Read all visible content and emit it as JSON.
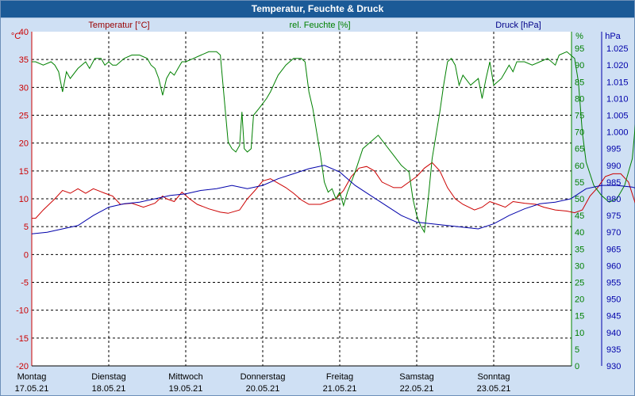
{
  "window": {
    "title": "Temperatur, Feuchte & Druck"
  },
  "chart_data": {
    "type": "line",
    "title": "Temperatur, Feuchte & Druck",
    "grid": true,
    "colors": {
      "temperature": "#cc0000",
      "humidity": "#008000",
      "pressure": "#0000aa",
      "grid": "#000000",
      "plot_bg": "#ffffff",
      "outer_bg": "#cfe0f4",
      "titlebar": "#1b5a97"
    },
    "axes": {
      "temperature": {
        "label": "Temperatur [°C]",
        "unit": "°C",
        "min": -20,
        "max": 40,
        "step": 5,
        "ticks": [
          "40",
          "35",
          "30",
          "25",
          "20",
          "15",
          "10",
          "5",
          "0",
          "-5",
          "-10",
          "-15",
          "-20"
        ]
      },
      "humidity": {
        "label": "rel. Feuchte [%]",
        "unit": "%",
        "min": 0,
        "max": 100,
        "step": 5,
        "ticks": [
          "95",
          "90",
          "85",
          "80",
          "75",
          "70",
          "65",
          "60",
          "55",
          "50",
          "45",
          "40",
          "35",
          "30",
          "25",
          "20",
          "15",
          "10",
          "5",
          "0"
        ]
      },
      "pressure": {
        "label": "Druck [hPa]",
        "unit": "hPa",
        "min": 930,
        "max": 1030,
        "step": 5,
        "ticks": [
          "1.025",
          "1.020",
          "1.015",
          "1.010",
          "1.005",
          "1.000",
          "995",
          "990",
          "985",
          "980",
          "975",
          "970",
          "965",
          "960",
          "955",
          "950",
          "945",
          "940",
          "935",
          "930"
        ]
      }
    },
    "x_axis": {
      "days": [
        {
          "day": "Montag",
          "date": "17.05.21"
        },
        {
          "day": "Dienstag",
          "date": "18.05.21"
        },
        {
          "day": "Mittwoch",
          "date": "19.05.21"
        },
        {
          "day": "Donnerstag",
          "date": "20.05.21"
        },
        {
          "day": "Freitag",
          "date": "21.05.21"
        },
        {
          "day": "Samstag",
          "date": "22.05.21"
        },
        {
          "day": "Sonntag",
          "date": "23.05.21"
        }
      ]
    },
    "series": [
      {
        "name": "Temperatur [°C]",
        "axis": "temperature",
        "key": "temperature",
        "points": [
          [
            0,
            6.5
          ],
          [
            0.05,
            6.5
          ],
          [
            0.15,
            8
          ],
          [
            0.3,
            10
          ],
          [
            0.4,
            11.5
          ],
          [
            0.5,
            11
          ],
          [
            0.6,
            11.8
          ],
          [
            0.7,
            11
          ],
          [
            0.8,
            11.8
          ],
          [
            0.95,
            11
          ],
          [
            1.05,
            10.5
          ],
          [
            1.15,
            9
          ],
          [
            1.3,
            9.2
          ],
          [
            1.45,
            8.5
          ],
          [
            1.6,
            9.2
          ],
          [
            1.7,
            10.5
          ],
          [
            1.75,
            10
          ],
          [
            1.85,
            9.5
          ],
          [
            1.95,
            11.2
          ],
          [
            2.05,
            10
          ],
          [
            2.15,
            9
          ],
          [
            2.3,
            8.2
          ],
          [
            2.45,
            7.6
          ],
          [
            2.55,
            7.4
          ],
          [
            2.7,
            8
          ],
          [
            2.8,
            10
          ],
          [
            2.9,
            11.5
          ],
          [
            3.0,
            13.2
          ],
          [
            3.1,
            13.6
          ],
          [
            3.2,
            12.8
          ],
          [
            3.3,
            12
          ],
          [
            3.4,
            11
          ],
          [
            3.5,
            9.8
          ],
          [
            3.6,
            9
          ],
          [
            3.75,
            9
          ],
          [
            3.85,
            9.5
          ],
          [
            3.95,
            10
          ],
          [
            4.05,
            11.5
          ],
          [
            4.15,
            14
          ],
          [
            4.25,
            15.5
          ],
          [
            4.35,
            15.8
          ],
          [
            4.45,
            15
          ],
          [
            4.55,
            13
          ],
          [
            4.7,
            12
          ],
          [
            4.8,
            12
          ],
          [
            4.9,
            13
          ],
          [
            5.0,
            14
          ],
          [
            5.1,
            15.5
          ],
          [
            5.2,
            16.5
          ],
          [
            5.3,
            15
          ],
          [
            5.4,
            12
          ],
          [
            5.5,
            10
          ],
          [
            5.6,
            9
          ],
          [
            5.75,
            8
          ],
          [
            5.85,
            8.5
          ],
          [
            5.95,
            9.5
          ],
          [
            6.05,
            9
          ],
          [
            6.15,
            8.5
          ],
          [
            6.25,
            9.5
          ],
          [
            6.4,
            9.2
          ],
          [
            6.55,
            9
          ],
          [
            6.65,
            8.5
          ],
          [
            6.8,
            8
          ],
          [
            6.95,
            7.8
          ],
          [
            7.05,
            7.5
          ],
          [
            7.15,
            8
          ],
          [
            7.25,
            10.5
          ],
          [
            7.35,
            12
          ],
          [
            7.45,
            14
          ],
          [
            7.55,
            14.5
          ],
          [
            7.65,
            14.5
          ],
          [
            7.75,
            13
          ],
          [
            7.82,
            10
          ],
          [
            7.87,
            8
          ]
        ]
      },
      {
        "name": "rel. Feuchte [%]",
        "axis": "humidity",
        "key": "humidity",
        "points": [
          [
            0,
            91
          ],
          [
            0.05,
            91
          ],
          [
            0.15,
            90
          ],
          [
            0.25,
            91
          ],
          [
            0.3,
            90
          ],
          [
            0.35,
            88
          ],
          [
            0.4,
            82
          ],
          [
            0.45,
            88
          ],
          [
            0.5,
            86
          ],
          [
            0.6,
            89
          ],
          [
            0.7,
            91
          ],
          [
            0.75,
            89
          ],
          [
            0.82,
            92
          ],
          [
            0.9,
            92
          ],
          [
            0.95,
            90
          ],
          [
            1.0,
            91
          ],
          [
            1.05,
            90
          ],
          [
            1.1,
            90
          ],
          [
            1.2,
            92
          ],
          [
            1.3,
            93
          ],
          [
            1.4,
            93
          ],
          [
            1.5,
            92
          ],
          [
            1.55,
            90
          ],
          [
            1.6,
            89
          ],
          [
            1.65,
            86
          ],
          [
            1.7,
            81
          ],
          [
            1.75,
            86
          ],
          [
            1.8,
            88
          ],
          [
            1.85,
            87
          ],
          [
            1.9,
            89
          ],
          [
            1.95,
            91
          ],
          [
            2.0,
            91
          ],
          [
            2.1,
            92
          ],
          [
            2.2,
            93
          ],
          [
            2.3,
            94
          ],
          [
            2.4,
            94
          ],
          [
            2.45,
            93
          ],
          [
            2.5,
            80
          ],
          [
            2.55,
            67
          ],
          [
            2.6,
            65
          ],
          [
            2.65,
            64
          ],
          [
            2.7,
            66
          ],
          [
            2.73,
            76
          ],
          [
            2.76,
            65
          ],
          [
            2.8,
            64
          ],
          [
            2.85,
            65
          ],
          [
            2.88,
            75
          ],
          [
            2.95,
            77
          ],
          [
            3.05,
            80
          ],
          [
            3.1,
            82
          ],
          [
            3.2,
            87
          ],
          [
            3.3,
            90
          ],
          [
            3.4,
            92
          ],
          [
            3.5,
            92
          ],
          [
            3.55,
            91
          ],
          [
            3.6,
            82
          ],
          [
            3.65,
            77
          ],
          [
            3.7,
            70
          ],
          [
            3.75,
            63
          ],
          [
            3.8,
            55
          ],
          [
            3.85,
            52
          ],
          [
            3.9,
            53
          ],
          [
            3.95,
            50
          ],
          [
            4.0,
            52
          ],
          [
            4.05,
            48
          ],
          [
            4.1,
            52
          ],
          [
            4.2,
            58
          ],
          [
            4.3,
            65
          ],
          [
            4.4,
            67
          ],
          [
            4.5,
            69
          ],
          [
            4.6,
            66
          ],
          [
            4.7,
            63
          ],
          [
            4.8,
            60
          ],
          [
            4.9,
            58
          ],
          [
            4.95,
            50
          ],
          [
            5.0,
            45
          ],
          [
            5.05,
            42
          ],
          [
            5.1,
            40
          ],
          [
            5.15,
            50
          ],
          [
            5.2,
            62
          ],
          [
            5.3,
            76
          ],
          [
            5.35,
            84
          ],
          [
            5.4,
            91
          ],
          [
            5.45,
            92
          ],
          [
            5.5,
            90
          ],
          [
            5.55,
            84
          ],
          [
            5.6,
            87
          ],
          [
            5.7,
            84
          ],
          [
            5.8,
            86
          ],
          [
            5.85,
            80
          ],
          [
            5.9,
            86
          ],
          [
            5.95,
            91
          ],
          [
            6.0,
            84
          ],
          [
            6.1,
            86
          ],
          [
            6.15,
            88
          ],
          [
            6.2,
            90
          ],
          [
            6.25,
            88
          ],
          [
            6.3,
            91
          ],
          [
            6.4,
            91
          ],
          [
            6.5,
            90
          ],
          [
            6.6,
            91
          ],
          [
            6.7,
            92
          ],
          [
            6.8,
            90
          ],
          [
            6.85,
            93
          ],
          [
            6.95,
            94
          ],
          [
            7.05,
            92
          ],
          [
            7.1,
            85
          ],
          [
            7.15,
            70
          ],
          [
            7.2,
            61
          ],
          [
            7.3,
            54
          ],
          [
            7.4,
            51
          ],
          [
            7.5,
            49
          ],
          [
            7.6,
            50
          ],
          [
            7.7,
            54
          ],
          [
            7.8,
            62
          ],
          [
            7.87,
            80
          ]
        ]
      },
      {
        "name": "Druck [hPa]",
        "axis": "pressure",
        "key": "pressure",
        "points": [
          [
            0,
            969.5
          ],
          [
            0.2,
            970
          ],
          [
            0.4,
            971
          ],
          [
            0.6,
            972
          ],
          [
            0.8,
            975
          ],
          [
            1.0,
            977.5
          ],
          [
            1.2,
            978.5
          ],
          [
            1.4,
            979
          ],
          [
            1.6,
            980
          ],
          [
            1.8,
            981
          ],
          [
            2.0,
            981.5
          ],
          [
            2.2,
            982.5
          ],
          [
            2.4,
            983
          ],
          [
            2.6,
            984
          ],
          [
            2.8,
            983
          ],
          [
            3.0,
            984
          ],
          [
            3.2,
            986
          ],
          [
            3.4,
            987.5
          ],
          [
            3.6,
            989
          ],
          [
            3.8,
            990
          ],
          [
            4.0,
            988
          ],
          [
            4.2,
            984
          ],
          [
            4.4,
            981
          ],
          [
            4.6,
            978
          ],
          [
            4.8,
            975
          ],
          [
            5.0,
            973
          ],
          [
            5.2,
            972.5
          ],
          [
            5.4,
            972
          ],
          [
            5.6,
            971.5
          ],
          [
            5.8,
            971
          ],
          [
            6.0,
            972.5
          ],
          [
            6.2,
            975
          ],
          [
            6.4,
            977
          ],
          [
            6.6,
            978.5
          ],
          [
            6.8,
            979
          ],
          [
            7.0,
            980
          ],
          [
            7.2,
            983
          ],
          [
            7.4,
            984
          ],
          [
            7.6,
            984
          ],
          [
            7.8,
            983.5
          ],
          [
            7.87,
            983
          ]
        ]
      }
    ]
  }
}
